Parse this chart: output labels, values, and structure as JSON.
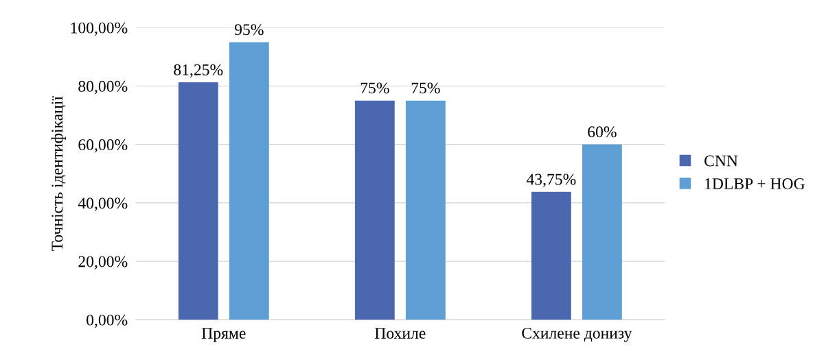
{
  "chart_data": {
    "type": "bar",
    "ylabel": "Точність ідентифікації",
    "categories": [
      "Пряме",
      "Похиле",
      "Схилене донизу"
    ],
    "series": [
      {
        "name": "CNN",
        "color": "#4a67b0",
        "values": [
          81.25,
          75,
          43.75
        ],
        "value_labels": [
          "81,25%",
          "75%",
          "43,75%"
        ]
      },
      {
        "name": "1DLBP + HOG",
        "color": "#5f9ed3",
        "values": [
          95,
          75,
          60
        ],
        "value_labels": [
          "95%",
          "75%",
          "60%"
        ]
      }
    ],
    "ylim": [
      0,
      100
    ],
    "yticks": [
      {
        "value": 0,
        "label": "0,00%"
      },
      {
        "value": 20,
        "label": "20,00%"
      },
      {
        "value": 40,
        "label": "40,00%"
      },
      {
        "value": 60,
        "label": "60,00%"
      },
      {
        "value": 80,
        "label": "80,00%"
      },
      {
        "value": 100,
        "label": "100,00%"
      }
    ],
    "grid": "y",
    "legend": "right"
  }
}
